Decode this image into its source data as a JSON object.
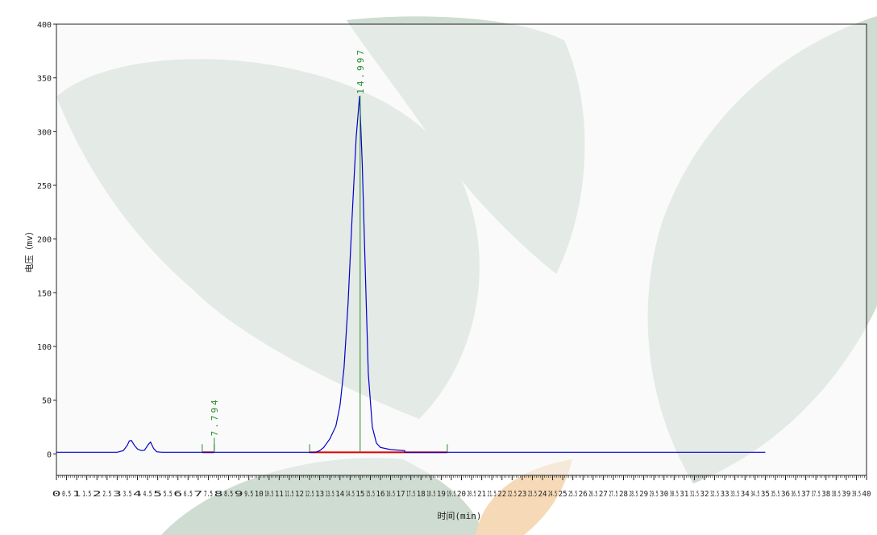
{
  "chart_data": {
    "type": "line",
    "title": "",
    "xlabel": "时间(min)",
    "ylabel": "电压（mv）",
    "xlim": [
      0,
      40
    ],
    "ylim": [
      -20,
      400
    ],
    "y_ticks": [
      0,
      50,
      100,
      150,
      200,
      250,
      300,
      350,
      400
    ],
    "x_tick_step": 0.5,
    "grid": false,
    "colors": {
      "signal": "#0000cc",
      "baseline_integration": "#e00000",
      "peak_marker": "#2a8a2a",
      "background": "#ffffff",
      "plot_area": "#f5f5f5",
      "watermark": "#cfdcd2",
      "watermark_accent": "#f6d9b6"
    },
    "series": [
      {
        "points": [
          [
            0,
            1.5
          ],
          [
            3.0,
            1.5
          ],
          [
            3.3,
            3
          ],
          [
            3.5,
            8
          ],
          [
            3.6,
            12
          ],
          [
            3.7,
            12.5
          ],
          [
            3.85,
            8
          ],
          [
            4.0,
            4.5
          ],
          [
            4.2,
            3
          ],
          [
            4.35,
            3.5
          ],
          [
            4.55,
            9
          ],
          [
            4.65,
            11
          ],
          [
            4.8,
            5
          ],
          [
            4.95,
            2
          ],
          [
            5.2,
            1.5
          ],
          [
            12.8,
            1.5
          ],
          [
            13.0,
            3
          ],
          [
            13.2,
            6
          ],
          [
            13.5,
            14
          ],
          [
            13.8,
            26
          ],
          [
            14.0,
            45
          ],
          [
            14.2,
            80
          ],
          [
            14.4,
            140
          ],
          [
            14.6,
            220
          ],
          [
            14.8,
            295
          ],
          [
            14.97,
            333
          ],
          [
            15.1,
            270
          ],
          [
            15.25,
            170
          ],
          [
            15.4,
            75
          ],
          [
            15.6,
            25
          ],
          [
            15.8,
            10
          ],
          [
            16.0,
            6
          ],
          [
            16.5,
            4
          ],
          [
            17.2,
            3
          ],
          [
            17.2,
            1.5
          ],
          [
            35.0,
            1.5
          ]
        ]
      }
    ],
    "peaks": [
      {
        "rt": 7.794,
        "label": "7.794",
        "start": 7.2,
        "end": 7.794
      },
      {
        "rt": 14.997,
        "label": "14.997",
        "start": 12.5,
        "end": 19.3
      }
    ]
  }
}
